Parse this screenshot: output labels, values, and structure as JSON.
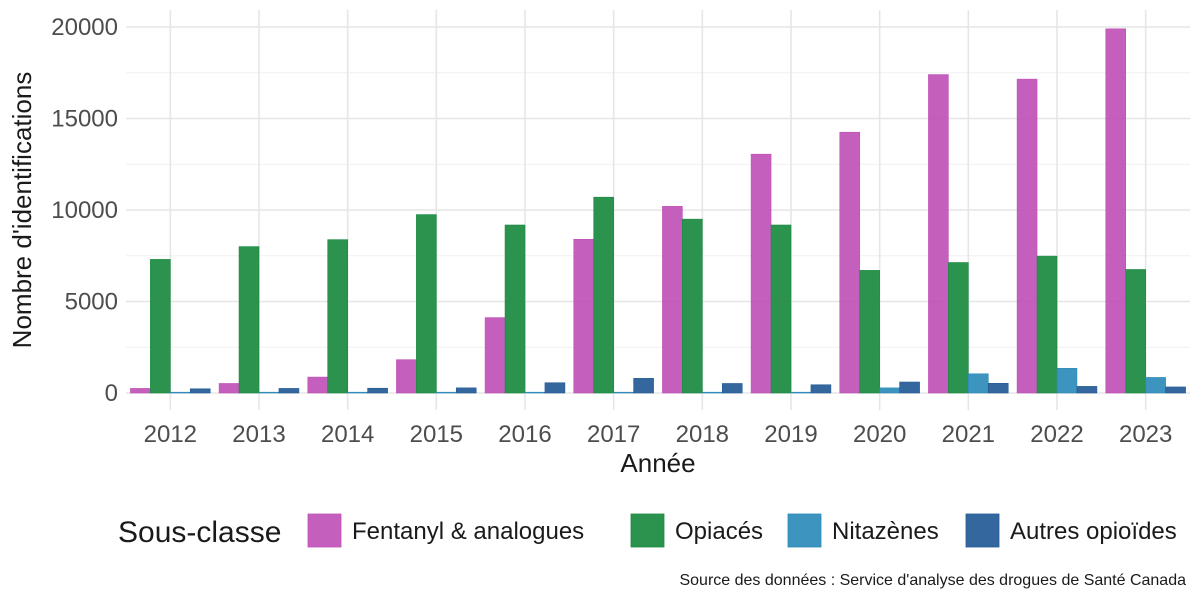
{
  "chart_data": {
    "type": "bar",
    "title": "",
    "xlabel": "Année",
    "ylabel": "Nombre d'identifications",
    "ylim": [
      0,
      20000
    ],
    "yticks": [
      0,
      5000,
      10000,
      15000,
      20000
    ],
    "categories": [
      "2012",
      "2013",
      "2014",
      "2015",
      "2016",
      "2017",
      "2018",
      "2019",
      "2020",
      "2021",
      "2022",
      "2023"
    ],
    "series": [
      {
        "name": "Fentanyl & analogues",
        "color": "#c051b7",
        "values": [
          250,
          520,
          870,
          1820,
          4120,
          8400,
          10200,
          13050,
          14250,
          17400,
          17150,
          19900
        ]
      },
      {
        "name": "Opiacés",
        "color": "#1a8a40",
        "values": [
          7300,
          8000,
          8380,
          9750,
          9180,
          10700,
          9500,
          9180,
          6700,
          7130,
          7480,
          6750
        ]
      },
      {
        "name": "Nitazènes",
        "color": "#2d8bba",
        "values": [
          0,
          0,
          0,
          0,
          0,
          0,
          0,
          0,
          280,
          1050,
          1350,
          850
        ]
      },
      {
        "name": "Autres opioïdes",
        "color": "#235a95",
        "values": [
          230,
          250,
          260,
          280,
          560,
          800,
          520,
          450,
          600,
          530,
          360,
          330
        ]
      }
    ],
    "grid": true,
    "legend_position": "bottom",
    "legend_title": "Sous-classe",
    "caption": "Source des données : Service d'analyse des drogues de Santé Canada"
  }
}
